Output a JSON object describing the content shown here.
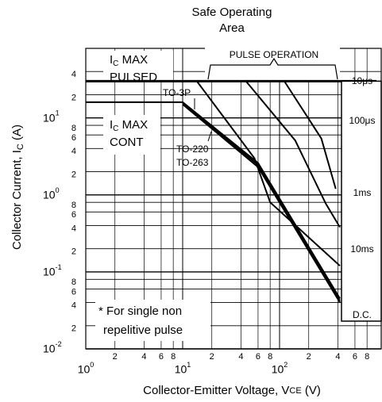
{
  "chart_data": {
    "type": "line",
    "title": [
      "Safe Operating",
      "Area"
    ],
    "x_label": [
      "Collector-Emitter Voltage, V",
      "CE",
      " (V)"
    ],
    "y_label": [
      "Collector Current, I",
      "C",
      " (A)"
    ],
    "log_x": true,
    "log_y": true,
    "grid": true,
    "color": "#000000",
    "xlim": [
      1,
      1000
    ],
    "ylim": [
      0.01,
      80
    ],
    "xticks": [
      {
        "value": 1,
        "label": "10",
        "sup": "0"
      },
      2,
      4,
      6,
      8,
      {
        "value": 10,
        "label": "10",
        "sup": "1"
      },
      {
        "value": 20,
        "label": "2"
      },
      {
        "value": 40,
        "label": "4"
      },
      {
        "value": 60,
        "label": "6"
      },
      {
        "value": 80,
        "label": "8"
      },
      {
        "value": 100,
        "label": "10",
        "sup": "2"
      },
      {
        "value": 200,
        "label": "2"
      },
      {
        "value": 400,
        "label": "4"
      },
      {
        "value": 600,
        "label": "6"
      },
      {
        "value": 800,
        "label": "8"
      }
    ],
    "yticks": [
      {
        "value": 0.01,
        "label": "10",
        "sup": "-2"
      },
      {
        "value": 0.02,
        "label": "2"
      },
      {
        "value": 0.04,
        "label": "4"
      },
      {
        "value": 0.06,
        "label": "6"
      },
      {
        "value": 0.08,
        "label": "8"
      },
      {
        "value": 0.1,
        "label": "10",
        "sup": "-1"
      },
      {
        "value": 0.2,
        "label": "2"
      },
      {
        "value": 0.4,
        "label": "4"
      },
      {
        "value": 0.6,
        "label": "6"
      },
      {
        "value": 0.8,
        "label": "8"
      },
      {
        "value": 1,
        "label": "10",
        "sup": "0"
      },
      2,
      4,
      6,
      8,
      {
        "value": 10,
        "label": "10",
        "sup": "1"
      },
      {
        "value": 20,
        "label": "2"
      },
      {
        "value": 40,
        "label": "4"
      }
    ],
    "series": [
      {
        "name": "10μs",
        "x": [
          1,
          1000
        ],
        "values": [
          30,
          30
        ]
      },
      {
        "name": "100μs",
        "x": [
          112,
          270,
          380
        ],
        "values": [
          30,
          5.4,
          1.2
        ]
      },
      {
        "name": "1ms",
        "x": [
          45,
          145,
          300,
          420
        ],
        "values": [
          30,
          5.1,
          0.77,
          0.38
        ]
      },
      {
        "name": "10ms",
        "x": [
          14,
          55,
          80,
          420
        ],
        "values": [
          30,
          3,
          0.8,
          0.12
        ]
      },
      {
        "name": "TO-3P",
        "x": [
          1,
          10,
          60,
          420
        ],
        "values": [
          16,
          16,
          2.6,
          0.045
        ]
      },
      {
        "name": "TO-220",
        "x": [
          10,
          60,
          420
        ],
        "values": [
          15.5,
          2.45,
          0.042
        ]
      },
      {
        "name": "TO-263",
        "x": [
          10,
          60,
          420
        ],
        "values": [
          15,
          2.3,
          0.04
        ]
      }
    ],
    "dc_label": "D.C.",
    "pulsed_max": {
      "main": "I",
      "sub": "C",
      "rest": " MAX",
      "line2": "PULSED"
    },
    "cont_max": {
      "main": "I",
      "sub": "C",
      "rest": " MAX",
      "line2": "CONT"
    },
    "pulse_operation": "PULSE OPERATION",
    "footnote": [
      "* For single non",
      "repelitive pulse"
    ]
  }
}
